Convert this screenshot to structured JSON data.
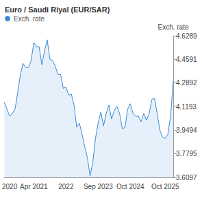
{
  "chart_data": {
    "type": "line",
    "title": "Euro / Saudi Riyal (EUR/SAR)",
    "y_label": "Exch. rate",
    "categories": [
      null,
      null,
      "2020",
      null,
      null,
      null,
      null,
      null,
      null,
      null,
      null,
      "Apr 2021",
      null,
      null,
      null,
      null,
      null,
      null,
      null,
      null,
      null,
      null,
      null,
      "2022",
      null,
      null,
      null,
      null,
      null,
      null,
      null,
      null,
      null,
      null,
      null,
      "Sep 2023",
      null,
      null,
      null,
      null,
      null,
      null,
      null,
      null,
      null,
      null,
      null,
      "Oct 2024",
      null,
      null,
      null,
      null,
      null,
      null,
      null,
      null,
      null,
      null,
      null,
      null,
      "Oct 2025",
      null,
      null,
      null
    ],
    "series": [
      {
        "name": "Exch. rate",
        "color": "#3a8ad6",
        "values": [
          4.15,
          4.1,
          4.05,
          4.07,
          4.1,
          4.22,
          4.35,
          4.43,
          4.4,
          4.4,
          4.45,
          4.58,
          4.55,
          4.55,
          4.42,
          4.52,
          4.6,
          4.46,
          4.45,
          4.41,
          4.35,
          4.35,
          4.25,
          4.26,
          4.2,
          4.21,
          4.13,
          3.97,
          4.0,
          3.92,
          3.83,
          3.75,
          3.62,
          3.72,
          3.89,
          4.0,
          4.08,
          3.98,
          4.07,
          4.13,
          4.03,
          4.09,
          4.12,
          4.07,
          3.96,
          3.97,
          4.1,
          4.14,
          4.07,
          4.05,
          4.05,
          4.01,
          4.07,
          4.02,
          4.07,
          4.17,
          4.18,
          4.07,
          3.95,
          3.9,
          3.89,
          3.92,
          4.05,
          4.3
        ]
      }
    ],
    "ylim": [
      3.6097,
      4.6289
    ],
    "yticks": [
      3.6097,
      3.7795,
      3.9494,
      4.1193,
      4.2892,
      4.4591,
      4.6289
    ],
    "grid": false,
    "legend": "top-left"
  }
}
